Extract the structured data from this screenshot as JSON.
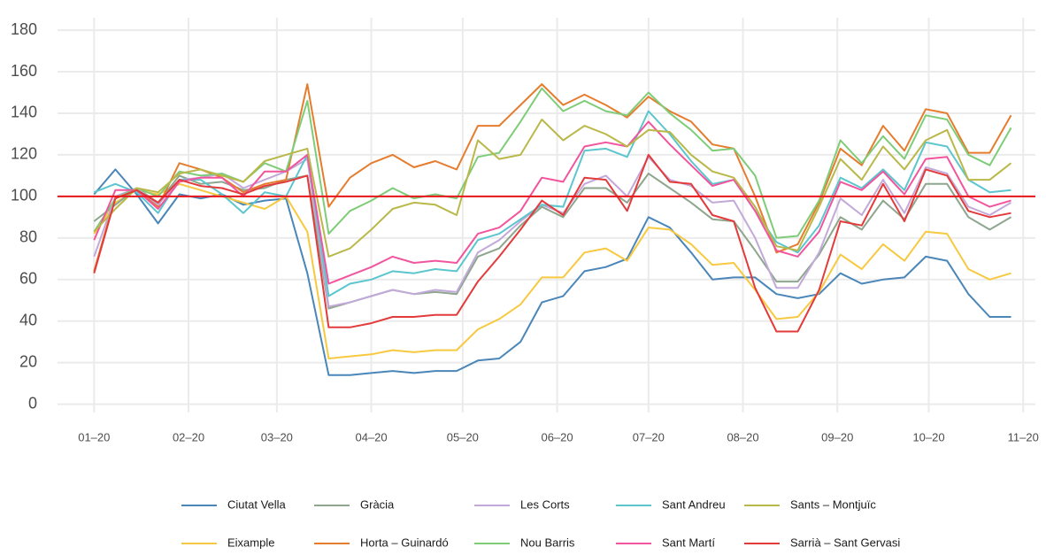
{
  "chart_data": {
    "type": "line",
    "x": [
      0,
      7,
      14,
      21,
      28,
      35,
      42,
      49,
      56,
      63,
      70,
      77,
      84,
      91,
      98,
      105,
      112,
      119,
      126,
      133,
      140,
      147,
      154,
      161,
      168,
      175,
      182,
      189,
      196,
      203,
      210,
      217,
      224,
      231,
      238,
      245,
      252,
      259,
      266,
      273,
      280,
      287,
      294,
      301
    ],
    "xlim": [
      -12,
      309
    ],
    "xticks": [
      {
        "value": 0,
        "label": "01–20"
      },
      {
        "value": 31,
        "label": "02–20"
      },
      {
        "value": 60,
        "label": "03–20"
      },
      {
        "value": 91,
        "label": "04–20"
      },
      {
        "value": 121,
        "label": "05–20"
      },
      {
        "value": 152,
        "label": "06–20"
      },
      {
        "value": 182,
        "label": "07–20"
      },
      {
        "value": 213,
        "label": "08–20"
      },
      {
        "value": 244,
        "label": "09–20"
      },
      {
        "value": 274,
        "label": "10–20"
      },
      {
        "value": 305,
        "label": "11–20"
      }
    ],
    "ylim": [
      -4,
      186
    ],
    "yticks": [
      0,
      20,
      40,
      60,
      80,
      100,
      120,
      140,
      160,
      180
    ],
    "grid": true,
    "reference_line": {
      "value": 100,
      "color": "#e8161b"
    },
    "series": [
      {
        "name": "Ciutat Vella",
        "color": "#4a86b8",
        "values": [
          101,
          113,
          101,
          87,
          101,
          99,
          101,
          96,
          98,
          99,
          63,
          14,
          14,
          15,
          16,
          15,
          16,
          16,
          21,
          22,
          30,
          49,
          52,
          64,
          66,
          70,
          90,
          85,
          73,
          60,
          61,
          61,
          53,
          51,
          53,
          63,
          58,
          60,
          61,
          71,
          69,
          53,
          42,
          42
        ]
      },
      {
        "name": "Eixample",
        "color": "#f7c940",
        "values": [
          82,
          97,
          103,
          101,
          106,
          103,
          100,
          97,
          94,
          100,
          83,
          22,
          23,
          24,
          26,
          25,
          26,
          26,
          36,
          41,
          48,
          61,
          61,
          73,
          75,
          69,
          85,
          84,
          77,
          67,
          68,
          55,
          41,
          42,
          54,
          72,
          65,
          77,
          69,
          83,
          82,
          65,
          60,
          63
        ]
      },
      {
        "name": "Gràcia",
        "color": "#8da68d",
        "values": [
          88,
          96,
          104,
          97,
          110,
          106,
          107,
          103,
          104,
          108,
          110,
          46,
          49,
          52,
          55,
          53,
          54,
          53,
          71,
          75,
          86,
          95,
          90,
          104,
          104,
          97,
          111,
          104,
          97,
          89,
          88,
          74,
          59,
          59,
          72,
          90,
          84,
          98,
          89,
          106,
          106,
          90,
          84,
          90
        ]
      },
      {
        "name": "Horta – Guinardó",
        "color": "#e57c2e",
        "values": [
          64,
          100,
          103,
          95,
          116,
          113,
          109,
          102,
          106,
          108,
          154,
          95,
          109,
          116,
          120,
          114,
          117,
          113,
          134,
          134,
          144,
          154,
          144,
          149,
          144,
          138,
          148,
          141,
          136,
          125,
          123,
          100,
          73,
          77,
          97,
          123,
          115,
          134,
          122,
          142,
          140,
          121,
          121,
          139
        ]
      },
      {
        "name": "Les Corts",
        "color": "#c2a9d9",
        "values": [
          71,
          100,
          104,
          96,
          108,
          109,
          111,
          104,
          108,
          112,
          118,
          47,
          49,
          52,
          55,
          53,
          55,
          54,
          73,
          79,
          88,
          96,
          92,
          106,
          110,
          100,
          119,
          108,
          105,
          97,
          98,
          80,
          56,
          56,
          73,
          99,
          91,
          108,
          92,
          114,
          111,
          95,
          91,
          97
        ]
      },
      {
        "name": "Nou Barris",
        "color": "#7fcc78",
        "values": [
          83,
          99,
          104,
          100,
          112,
          110,
          111,
          107,
          116,
          112,
          146,
          82,
          93,
          98,
          104,
          99,
          101,
          99,
          119,
          121,
          136,
          152,
          141,
          146,
          141,
          139,
          150,
          140,
          132,
          122,
          123,
          110,
          80,
          81,
          98,
          127,
          116,
          129,
          118,
          139,
          137,
          120,
          115,
          133
        ]
      },
      {
        "name": "Sant Andreu",
        "color": "#5cc6cf",
        "values": [
          102,
          106,
          102,
          92,
          108,
          108,
          101,
          92,
          102,
          100,
          120,
          52,
          58,
          60,
          64,
          63,
          65,
          64,
          79,
          82,
          89,
          96,
          95,
          122,
          123,
          119,
          141,
          130,
          117,
          106,
          108,
          93,
          78,
          73,
          86,
          109,
          104,
          113,
          103,
          126,
          124,
          108,
          102,
          103
        ]
      },
      {
        "name": "Sant Martí",
        "color": "#f2559e",
        "values": [
          79,
          103,
          103,
          94,
          107,
          109,
          109,
          100,
          112,
          112,
          120,
          58,
          62,
          66,
          71,
          68,
          69,
          68,
          82,
          85,
          93,
          109,
          107,
          124,
          126,
          124,
          136,
          125,
          115,
          105,
          108,
          93,
          74,
          71,
          83,
          107,
          103,
          112,
          101,
          118,
          119,
          100,
          95,
          98
        ]
      },
      {
        "name": "Sants – Montjuïc",
        "color": "#b9b849",
        "values": [
          83,
          94,
          104,
          102,
          111,
          113,
          110,
          107,
          117,
          120,
          123,
          71,
          75,
          84,
          94,
          97,
          96,
          91,
          127,
          118,
          120,
          137,
          127,
          134,
          130,
          124,
          132,
          131,
          120,
          112,
          109,
          95,
          76,
          74,
          95,
          118,
          108,
          124,
          113,
          127,
          132,
          108,
          108,
          116
        ]
      },
      {
        "name": "Sarrià – Sant Gervasi",
        "color": "#e33b3b",
        "values": [
          63,
          99,
          103,
          97,
          108,
          105,
          104,
          101,
          105,
          107,
          110,
          37,
          37,
          39,
          42,
          42,
          43,
          43,
          59,
          71,
          84,
          98,
          91,
          109,
          108,
          93,
          120,
          107,
          106,
          91,
          88,
          56,
          35,
          35,
          55,
          88,
          86,
          106,
          88,
          113,
          110,
          93,
          90,
          92
        ]
      }
    ]
  }
}
